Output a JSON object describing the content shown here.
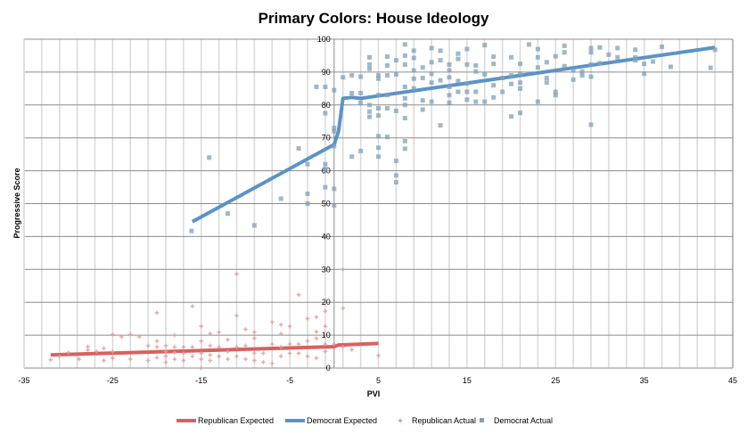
{
  "chart_data": {
    "type": "scatter",
    "title": "Primary Colors: House Ideology",
    "xlabel": "PVI",
    "ylabel": "Progressive Score",
    "xlim": [
      -35,
      45
    ],
    "ylim": [
      0,
      100
    ],
    "x_ticks": [
      -35,
      -25,
      -15,
      -5,
      5,
      15,
      25,
      35,
      45
    ],
    "y_ticks": [
      0,
      10,
      20,
      30,
      40,
      50,
      60,
      70,
      80,
      90,
      100
    ],
    "x_minor_grid_step": 2,
    "grid": true,
    "legend_position": "bottom",
    "colors": {
      "republican": "#d9605f",
      "democrat": "#5b93c7",
      "republican_point": "#e39a9a",
      "democrat_point": "#7f9fba"
    },
    "series": [
      {
        "name": "Republican Expected",
        "kind": "line",
        "points": [
          [
            -32,
            4
          ],
          [
            0,
            6.5
          ],
          [
            0.5,
            7
          ],
          [
            5,
            7.5
          ]
        ]
      },
      {
        "name": "Democrat Expected",
        "kind": "line",
        "points": [
          [
            -16,
            44.5
          ],
          [
            0,
            68
          ],
          [
            0.5,
            72
          ],
          [
            1,
            82
          ],
          [
            2,
            82.3
          ],
          [
            3,
            82
          ],
          [
            43,
            97.5
          ]
        ]
      },
      {
        "name": "Republican Actual",
        "kind": "scatter",
        "points": [
          [
            -32,
            2.5
          ],
          [
            -31,
            3.6
          ],
          [
            -30,
            4.7
          ],
          [
            -28.8,
            2.7
          ],
          [
            -27.8,
            6.5
          ],
          [
            -27.8,
            5.5
          ],
          [
            -26.8,
            5
          ],
          [
            -26,
            6
          ],
          [
            -26,
            2.3
          ],
          [
            -25,
            10.2
          ],
          [
            -25,
            5
          ],
          [
            -25,
            3
          ],
          [
            -24,
            9.5
          ],
          [
            -23,
            10.2
          ],
          [
            -23,
            2.7
          ],
          [
            -22,
            9.5
          ],
          [
            -21,
            6.8
          ],
          [
            -21,
            2.3
          ],
          [
            -20,
            16.8
          ],
          [
            -20,
            8.2
          ],
          [
            -20,
            6.4
          ],
          [
            -20,
            3.2
          ],
          [
            -19,
            6.8
          ],
          [
            -19,
            5
          ],
          [
            -19,
            3.6
          ],
          [
            -19,
            1.8
          ],
          [
            -18,
            10
          ],
          [
            -18,
            6.4
          ],
          [
            -18,
            4.7
          ],
          [
            -18,
            2.7
          ],
          [
            -17,
            6.4
          ],
          [
            -17,
            4.5
          ],
          [
            -17,
            2.3
          ],
          [
            -16,
            18.8
          ],
          [
            -16,
            6.4
          ],
          [
            -16,
            3.6
          ],
          [
            -15,
            12.7
          ],
          [
            -15,
            8.2
          ],
          [
            -15,
            4.5
          ],
          [
            -15,
            2.7
          ],
          [
            -15,
            0
          ],
          [
            -14,
            10.5
          ],
          [
            -14,
            6.8
          ],
          [
            -14,
            4
          ],
          [
            -14,
            2.3
          ],
          [
            -13,
            10.9
          ],
          [
            -13,
            6.4
          ],
          [
            -13,
            3.6
          ],
          [
            -12,
            8.6
          ],
          [
            -12,
            5
          ],
          [
            -12,
            2.7
          ],
          [
            -11,
            28.6
          ],
          [
            -11,
            15.9
          ],
          [
            -11,
            6.4
          ],
          [
            -11,
            3.6
          ],
          [
            -10,
            11.8
          ],
          [
            -10,
            6.8
          ],
          [
            -10,
            2.7
          ],
          [
            -9,
            10.9
          ],
          [
            -9,
            9
          ],
          [
            -9,
            4.5
          ],
          [
            -9,
            2.3
          ],
          [
            -8,
            4.5
          ],
          [
            -8,
            1.8
          ],
          [
            -7,
            14
          ],
          [
            -7,
            7.3
          ],
          [
            -7,
            1.4
          ],
          [
            -6,
            13.2
          ],
          [
            -6,
            10.4
          ],
          [
            -6,
            6.4
          ],
          [
            -6,
            3.6
          ],
          [
            -5,
            12.7
          ],
          [
            -5,
            7.3
          ],
          [
            -5,
            4.5
          ],
          [
            -4,
            22.3
          ],
          [
            -4,
            7.3
          ],
          [
            -4,
            4.5
          ],
          [
            -3,
            15
          ],
          [
            -3,
            8.2
          ],
          [
            -3,
            3.6
          ],
          [
            -2,
            15.5
          ],
          [
            -2,
            11
          ],
          [
            -2,
            9
          ],
          [
            -2,
            3
          ],
          [
            -1,
            17.3
          ],
          [
            -1,
            12.7
          ],
          [
            -1,
            7.3
          ],
          [
            -1,
            5
          ],
          [
            0,
            7.3
          ],
          [
            1,
            30
          ],
          [
            1,
            18.2
          ],
          [
            1,
            6.4
          ],
          [
            2,
            5.6
          ],
          [
            5,
            3.8
          ]
        ]
      },
      {
        "name": "Democrat Actual",
        "kind": "scatter",
        "points": [
          [
            -16.1,
            41.7
          ],
          [
            -14.1,
            64
          ],
          [
            -12,
            47
          ],
          [
            -9,
            43.4
          ],
          [
            -6,
            51.5
          ],
          [
            -4,
            66.8
          ],
          [
            -3,
            62
          ],
          [
            -3,
            53
          ],
          [
            -3,
            50
          ],
          [
            -2,
            85.5
          ],
          [
            -1,
            85.5
          ],
          [
            -1,
            77.5
          ],
          [
            -1,
            62
          ],
          [
            -1,
            60.5
          ],
          [
            -1,
            55
          ],
          [
            0,
            84.5
          ],
          [
            0,
            73
          ],
          [
            0,
            72
          ],
          [
            0,
            67.5
          ],
          [
            0,
            54.5
          ],
          [
            0,
            49.5
          ],
          [
            1,
            88.4
          ],
          [
            2,
            89
          ],
          [
            2,
            83.6
          ],
          [
            2,
            64.3
          ],
          [
            3,
            88.6
          ],
          [
            3,
            83.6
          ],
          [
            3,
            80.7
          ],
          [
            3,
            66
          ],
          [
            4,
            94.5
          ],
          [
            4,
            92.3
          ],
          [
            4,
            91
          ],
          [
            4,
            80
          ],
          [
            4,
            78
          ],
          [
            4,
            76.4
          ],
          [
            5,
            89
          ],
          [
            5,
            88
          ],
          [
            5,
            83
          ],
          [
            5,
            79
          ],
          [
            5,
            76.8
          ],
          [
            5,
            70.5
          ],
          [
            5,
            67
          ],
          [
            5,
            64.3
          ],
          [
            6,
            94.7
          ],
          [
            6,
            92
          ],
          [
            6,
            89
          ],
          [
            6,
            83
          ],
          [
            6,
            79
          ],
          [
            6,
            70.3
          ],
          [
            7,
            93.6
          ],
          [
            7,
            89.3
          ],
          [
            7,
            78.2
          ],
          [
            7,
            63
          ],
          [
            7,
            58.6
          ],
          [
            7,
            56.5
          ],
          [
            8,
            98.4
          ],
          [
            8,
            95
          ],
          [
            8,
            92.3
          ],
          [
            8,
            85.5
          ],
          [
            8,
            82
          ],
          [
            8,
            80
          ],
          [
            8,
            76
          ],
          [
            8,
            69
          ],
          [
            8,
            66.7
          ],
          [
            9,
            96.5
          ],
          [
            9,
            94.3
          ],
          [
            9,
            90.5
          ],
          [
            9,
            88
          ],
          [
            9,
            85
          ],
          [
            10,
            91.4
          ],
          [
            10,
            88.2
          ],
          [
            10,
            81.4
          ],
          [
            10,
            78.6
          ],
          [
            11,
            97.3
          ],
          [
            11,
            93
          ],
          [
            11,
            89.5
          ],
          [
            11,
            86.8
          ],
          [
            11,
            81
          ],
          [
            12,
            96.5
          ],
          [
            12,
            93.6
          ],
          [
            12,
            87.5
          ],
          [
            12,
            73.8
          ],
          [
            13,
            92.3
          ],
          [
            13,
            90.5
          ],
          [
            13,
            88.4
          ],
          [
            13,
            85.5
          ],
          [
            13,
            83
          ],
          [
            13,
            80.7
          ],
          [
            14,
            95.6
          ],
          [
            14,
            94
          ],
          [
            14,
            87.3
          ],
          [
            14,
            84
          ],
          [
            15,
            97
          ],
          [
            15,
            92.3
          ],
          [
            15,
            86.5
          ],
          [
            15,
            84
          ],
          [
            15,
            81.6
          ],
          [
            16,
            92
          ],
          [
            16,
            90.2
          ],
          [
            16,
            84
          ],
          [
            16,
            81
          ],
          [
            17,
            98.2
          ],
          [
            17,
            89.3
          ],
          [
            17,
            81
          ],
          [
            18,
            94.7
          ],
          [
            18,
            92.5
          ],
          [
            18,
            86
          ],
          [
            18,
            82.3
          ],
          [
            19,
            88.2
          ],
          [
            19,
            84
          ],
          [
            20,
            94.5
          ],
          [
            20,
            89
          ],
          [
            20,
            86.4
          ],
          [
            20,
            76.5
          ],
          [
            21,
            92.5
          ],
          [
            21,
            89.5
          ],
          [
            21,
            86.8
          ],
          [
            21,
            85
          ],
          [
            21,
            77.6
          ],
          [
            22,
            98.4
          ],
          [
            23,
            97
          ],
          [
            23,
            94.5
          ],
          [
            23,
            91.4
          ],
          [
            23,
            81
          ],
          [
            24,
            93
          ],
          [
            24,
            88.2
          ],
          [
            24,
            86.8
          ],
          [
            25,
            94.8
          ],
          [
            25,
            84
          ],
          [
            25,
            83
          ],
          [
            26,
            98
          ],
          [
            26,
            96
          ],
          [
            26,
            91.8
          ],
          [
            27,
            90.5
          ],
          [
            27,
            87.7
          ],
          [
            28,
            90.2
          ],
          [
            28,
            89
          ],
          [
            29,
            97.3
          ],
          [
            29,
            96
          ],
          [
            29,
            92.3
          ],
          [
            29,
            88.6
          ],
          [
            29,
            74
          ],
          [
            30,
            97.5
          ],
          [
            30,
            92.7
          ],
          [
            31,
            95.3
          ],
          [
            32,
            97.3
          ],
          [
            32,
            94.5
          ],
          [
            34,
            96.8
          ],
          [
            34,
            94.5
          ],
          [
            34,
            93.6
          ],
          [
            35,
            92.5
          ],
          [
            35,
            89.5
          ],
          [
            36,
            93.2
          ],
          [
            37,
            97.7
          ],
          [
            38,
            91.6
          ],
          [
            42.5,
            91.3
          ],
          [
            43,
            96.8
          ]
        ]
      }
    ]
  }
}
